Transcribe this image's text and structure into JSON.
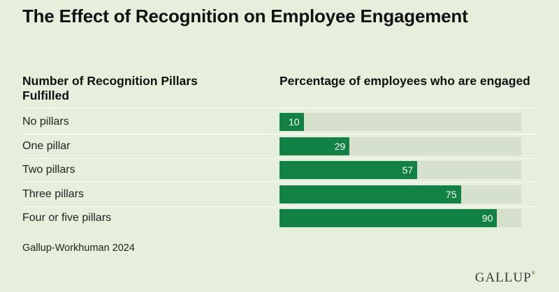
{
  "title": "The Effect of Recognition on Employee Engagement",
  "colors": {
    "background": "#e6efdc",
    "bar": "#128144",
    "track": "#d6e1cd"
  },
  "chart_data": {
    "type": "bar",
    "orientation": "horizontal",
    "title": "The Effect of Recognition on Employee Engagement",
    "xlabel": "Percentage of employees who are engaged",
    "ylabel": "Number of Recognition Pillars Fulfilled",
    "xlim": [
      0,
      100
    ],
    "grid": false,
    "categories": [
      "No pillars",
      "One pillar",
      "Two pillars",
      "Three pillars",
      "Four or five pillars"
    ],
    "values": [
      10,
      29,
      57,
      75,
      90
    ]
  },
  "source": "Gallup-Workhuman 2024",
  "logo": "GALLUP"
}
